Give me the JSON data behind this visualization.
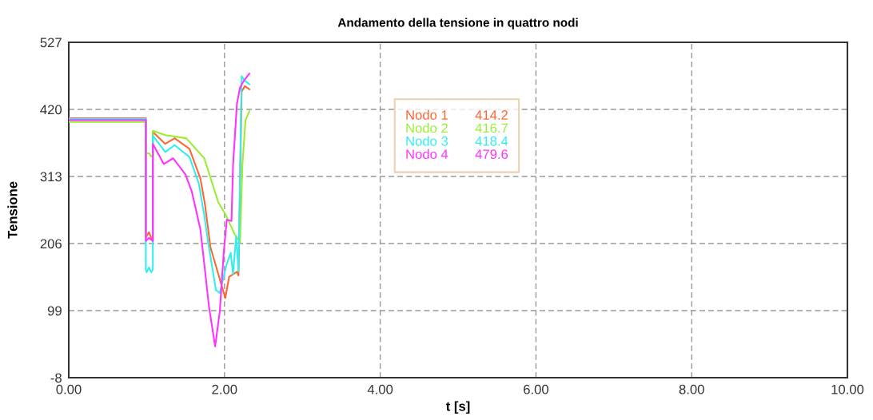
{
  "chart_data": {
    "type": "line",
    "title": "Andamento della tensione in quattro nodi",
    "xlabel": "t [s]",
    "ylabel": "Tensione",
    "xlim": [
      0,
      10
    ],
    "xticks": [
      {
        "value": 0,
        "label": "0.00"
      },
      {
        "value": 2,
        "label": "2.00"
      },
      {
        "value": 4,
        "label": "4.00"
      },
      {
        "value": 6,
        "label": "6.00"
      },
      {
        "value": 8,
        "label": "8.00"
      },
      {
        "value": 10,
        "label": "10.00"
      }
    ],
    "ylim": [
      -8,
      527
    ],
    "yticks": [
      -8,
      99,
      206,
      313,
      420,
      527
    ],
    "grid": true,
    "legend": "top",
    "marker": "none",
    "line_style": "solid",
    "annotations": [
      "414.2",
      "416.7",
      "418.4",
      "479.6"
    ],
    "series": [
      {
        "name": "Nodo 1",
        "color": "#ff6633",
        "x": [
          0,
          0.99,
          0.99,
          1.0,
          1.03,
          1.06,
          1.08,
          1.08,
          1.24,
          1.36,
          1.55,
          1.69,
          1.75,
          1.82,
          1.94,
          2.01,
          2.06,
          2.16,
          2.18,
          2.22,
          2.26,
          2.32
        ],
        "values": [
          406,
          406,
          215,
          218,
          224,
          215,
          210,
          384,
          365,
          374,
          357,
          310,
          268,
          200,
          149,
          119,
          153,
          161,
          155,
          448,
          457,
          452
        ]
      },
      {
        "name": "Nodo 2",
        "color": "#99ee33",
        "x": [
          0,
          0.99,
          0.99,
          1.03,
          1.06,
          1.08,
          1.08,
          1.24,
          1.51,
          1.74,
          1.92,
          2.02,
          2.13,
          2.2,
          2.23,
          2.27,
          2.32
        ],
        "values": [
          400,
          400,
          350,
          350,
          345,
          345,
          386,
          379,
          374,
          342,
          272,
          251,
          221,
          208,
          331,
          403,
          417
        ]
      },
      {
        "name": "Nodo 3",
        "color": "#33eeee",
        "x": [
          0,
          0.99,
          0.99,
          1.0,
          1.03,
          1.06,
          1.08,
          1.08,
          1.24,
          1.36,
          1.55,
          1.67,
          1.74,
          1.79,
          1.89,
          1.94,
          2.03,
          2.08,
          2.11,
          2.15,
          2.18,
          2.22,
          2.26,
          2.32
        ],
        "values": [
          405,
          405,
          165,
          160,
          168,
          160,
          165,
          378,
          352,
          363,
          344,
          302,
          251,
          208,
          132,
          127,
          174,
          191,
          157,
          217,
          161,
          473,
          466,
          460
        ]
      },
      {
        "name": "Nodo 4",
        "color": "#ff33ff",
        "x": [
          0,
          0.99,
          0.99,
          1.03,
          1.08,
          1.08,
          1.22,
          1.34,
          1.5,
          1.58,
          1.69,
          1.74,
          1.8,
          1.88,
          1.94,
          1.99,
          2.03,
          2.09,
          2.11,
          2.16,
          2.2,
          2.25,
          2.32
        ],
        "values": [
          403,
          403,
          210,
          215,
          210,
          365,
          333,
          342,
          316,
          289,
          229,
          174,
          106,
          42,
          98,
          191,
          244,
          242,
          331,
          429,
          455,
          466,
          477
        ]
      }
    ]
  }
}
